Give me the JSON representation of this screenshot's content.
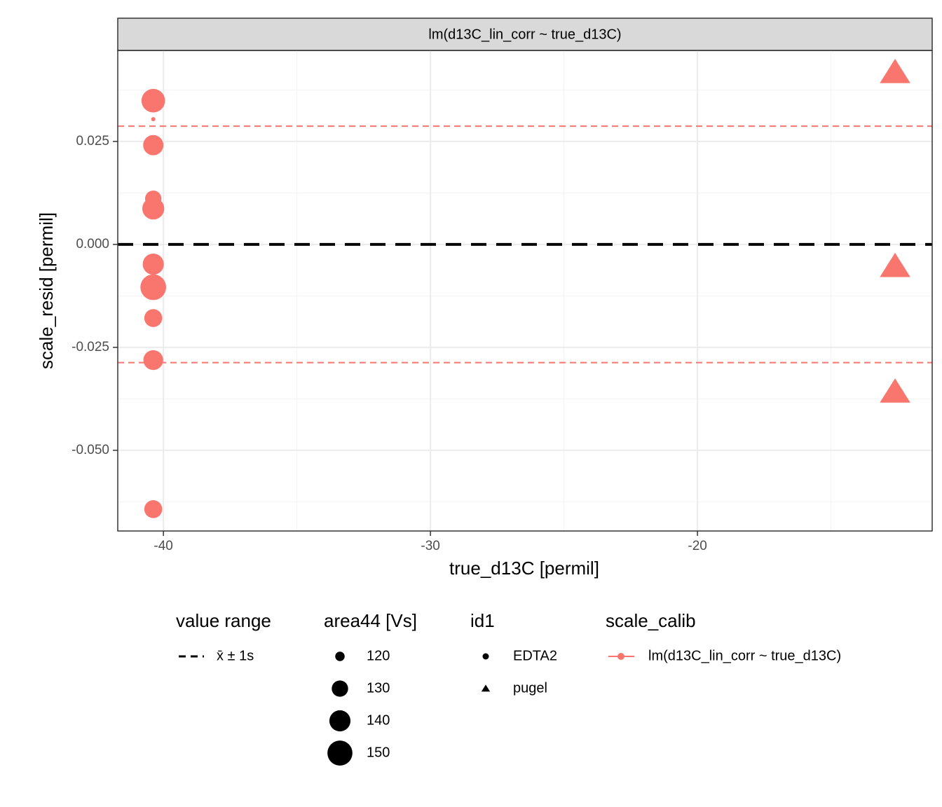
{
  "chart_data": {
    "type": "scatter",
    "title": "lm(d13C_lin_corr ~ true_d13C)",
    "x_label": "true_d13C [permil]",
    "y_label": "scale_resid [permil]",
    "xlim": [
      -41.71,
      -11.21
    ],
    "ylim": [
      -0.0696,
      0.0471
    ],
    "xticks": [
      -40,
      -30,
      -20
    ],
    "yticks": [
      {
        "value": -0.05,
        "label": "-0.050"
      },
      {
        "value": -0.025,
        "label": "-0.025"
      },
      {
        "value": 0,
        "label": "0.000"
      },
      0.025
    ],
    "grid": true,
    "color": "#f8766d",
    "series": [
      {
        "name": "EDTA2",
        "shape": "circle",
        "x": [
          -40.38,
          -40.38,
          -40.38,
          -40.38,
          -40.38,
          -40.38,
          -40.38,
          -40.38,
          -40.38,
          -40.38
        ],
        "values": [
          0.0349,
          0.0304,
          0.0241,
          0.0111,
          0.0087,
          -0.0048,
          -0.0104,
          -0.0179,
          -0.0281,
          -0.0643
        ],
        "sizes": [
          146,
          116,
          138,
          130,
          142,
          140,
          152,
          133,
          137,
          133
        ]
      },
      {
        "name": "pugel",
        "shape": "triangle",
        "x": [
          -12.6,
          -12.6,
          -12.6
        ],
        "values": [
          0.0417,
          -0.0054,
          -0.0359
        ],
        "sizes": [
          140,
          140,
          140
        ]
      }
    ],
    "mean_line": 0,
    "range_lines": [
      0.0287,
      -0.0287
    ],
    "legend": {
      "value_range": {
        "title": "value range",
        "label": "x̄ ± 1s"
      },
      "size": {
        "title": "area44 [Vs]",
        "values": [
          120,
          130,
          140,
          150
        ]
      },
      "shape": {
        "title": "id1"
      },
      "color": {
        "title": "scale_calib",
        "label": "lm(d13C_lin_corr ~ true_d13C)"
      }
    }
  }
}
